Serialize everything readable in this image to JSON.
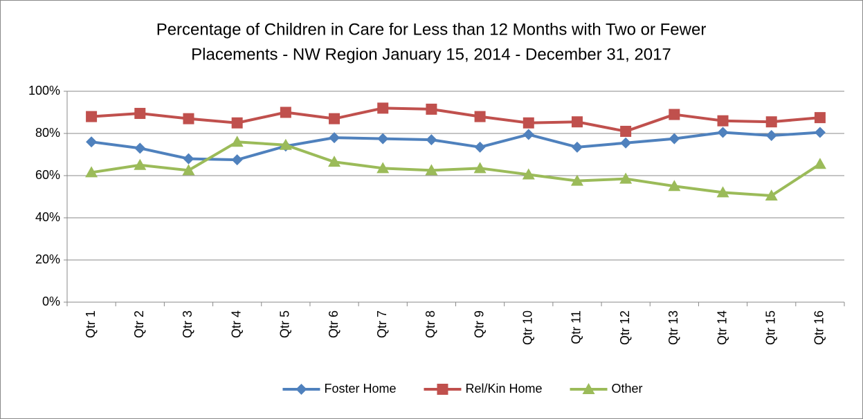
{
  "chart_data": {
    "type": "line",
    "title": [
      "Percentage of Children in Care for Less than 12 Months with Two or Fewer",
      "Placements - NW Region    January 15, 2014 - December 31, 2017"
    ],
    "categories": [
      "Qtr 1",
      "Qtr 2",
      "Qtr 3",
      "Qtr 4",
      "Qtr 5",
      "Qtr 6",
      "Qtr 7",
      "Qtr 8",
      "Qtr 9",
      "Qtr 10",
      "Qtr 11",
      "Qtr 12",
      "Qtr 13",
      "Qtr 14",
      "Qtr 15",
      "Qtr 16"
    ],
    "series": [
      {
        "name": "Foster Home",
        "color": "#4f81bd",
        "marker": "diamond",
        "values": [
          76,
          73,
          68,
          67.5,
          74,
          78,
          77.5,
          77,
          73.5,
          79.5,
          73.5,
          75.5,
          77.5,
          80.5,
          79,
          80.5
        ]
      },
      {
        "name": "Rel/Kin Home",
        "color": "#c0504d",
        "marker": "square",
        "values": [
          88,
          89.5,
          87,
          85,
          90,
          87,
          92,
          91.5,
          88,
          85,
          85.5,
          81,
          89,
          86,
          85.5,
          87.5
        ]
      },
      {
        "name": "Other",
        "color": "#9bbb59",
        "marker": "triangle",
        "values": [
          61.5,
          65,
          62.5,
          76,
          74.5,
          66.5,
          63.5,
          62.5,
          63.5,
          60.5,
          57.5,
          58.5,
          55,
          52,
          50.5,
          65.5
        ]
      }
    ],
    "ylim": [
      0,
      100
    ],
    "yticks": [
      {
        "value": 0,
        "label": "0%"
      },
      {
        "value": 20,
        "label": "20%"
      },
      {
        "value": 40,
        "label": "40%"
      },
      {
        "value": 60,
        "label": "60%"
      },
      {
        "value": 80,
        "label": "80%"
      },
      {
        "value": 100,
        "label": "100%"
      }
    ],
    "grid": true,
    "legend": "bottom"
  }
}
